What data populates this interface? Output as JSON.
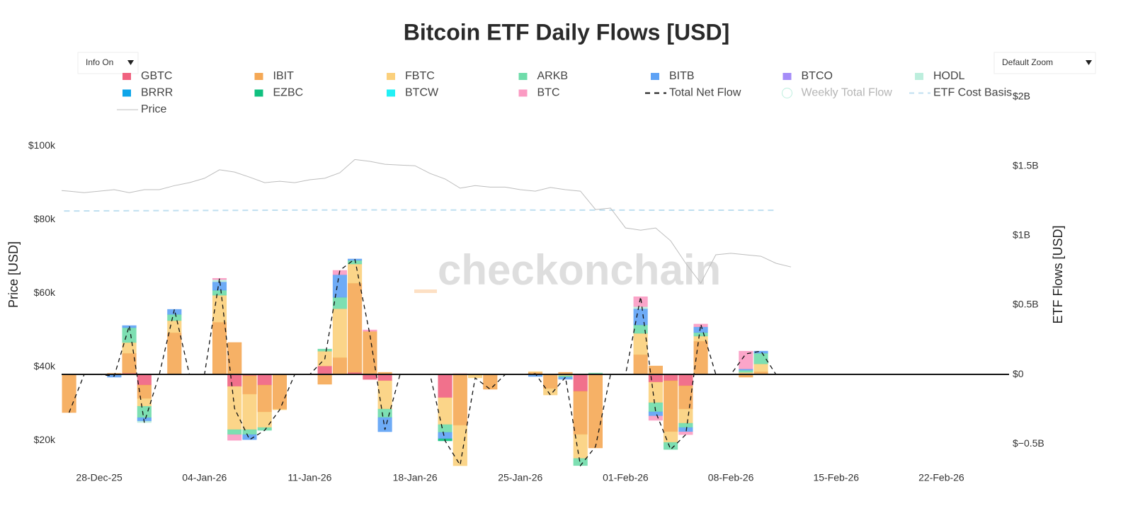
{
  "chart_data": {
    "type": "bar",
    "title": "Bitcoin ETF Daily Flows [USD]",
    "watermark": "checkonchain",
    "controls": [
      "Info On",
      "Default Zoom"
    ],
    "y_label": "Price [USD]",
    "y2_label": "ETF Flows [USD]",
    "legend": "top",
    "xlim": [
      "2025-12-25T12:00:00Z",
      "2026-02-26T12:00:00Z"
    ],
    "xticks": [
      {
        "value": "2025-12-28",
        "label": "28-Dec-25"
      },
      {
        "value": "2026-01-04",
        "label": "04-Jan-26"
      },
      {
        "value": "2026-01-11",
        "label": "11-Jan-26"
      },
      {
        "value": "2026-01-18",
        "label": "18-Jan-26"
      },
      {
        "value": "2026-01-25",
        "label": "25-Jan-26"
      },
      {
        "value": "2026-02-01",
        "label": "01-Feb-26"
      },
      {
        "value": "2026-02-08",
        "label": "08-Feb-26"
      },
      {
        "value": "2026-02-15",
        "label": "15-Feb-26"
      },
      {
        "value": "2026-02-22",
        "label": "22-Feb-26"
      }
    ],
    "ylim": [
      12700,
      113300
    ],
    "yticks": [
      {
        "value": 20000,
        "label": "$20k"
      },
      {
        "value": 40000,
        "label": "$40k"
      },
      {
        "value": 60000,
        "label": "$60k"
      },
      {
        "value": 80000,
        "label": "$80k"
      },
      {
        "value": 100000,
        "label": "$100k"
      }
    ],
    "y2lim": [
      -668000000,
      2000000000
    ],
    "y2ticks": [
      {
        "value": -500000000,
        "label": "$−0.5B"
      },
      {
        "value": 0,
        "label": "$0"
      },
      {
        "value": 500000000,
        "label": "$0.5B"
      },
      {
        "value": 1000000000,
        "label": "$1B"
      },
      {
        "value": 1500000000,
        "label": "$1.5B"
      },
      {
        "value": 2000000000,
        "label": "$2B"
      }
    ],
    "x": [
      "2025-12-26",
      "2025-12-29",
      "2025-12-30",
      "2025-12-31",
      "2026-01-02",
      "2026-01-05",
      "2026-01-06",
      "2026-01-07",
      "2026-01-08",
      "2026-01-09",
      "2026-01-12",
      "2026-01-13",
      "2026-01-14",
      "2026-01-15",
      "2026-01-16",
      "2026-01-20",
      "2026-01-21",
      "2026-01-22",
      "2026-01-23",
      "2026-01-26",
      "2026-01-27",
      "2026-01-28",
      "2026-01-29",
      "2026-01-30",
      "2026-02-02",
      "2026-02-03",
      "2026-02-04",
      "2026-02-05",
      "2026-02-06",
      "2026-02-09",
      "2026-02-10"
    ],
    "series": [
      {
        "name": "GBTC",
        "type": "bar",
        "axis": "y2",
        "color": "#f0627f",
        "values": [
          0,
          0,
          10000000,
          -77000000,
          0,
          5000000,
          -87000000,
          -10000000,
          -77000000,
          0,
          61000000,
          0,
          15000000,
          -36000000,
          -46000000,
          -168000000,
          5000000,
          0,
          0,
          5000000,
          0,
          0,
          -122000000,
          0,
          0,
          -56000000,
          -46000000,
          -82000000,
          0,
          0,
          0
        ]
      },
      {
        "name": "IBIT",
        "type": "bar",
        "axis": "y2",
        "color": "#f5a855",
        "values": [
          -275000000,
          8000000,
          143000000,
          -97000000,
          301000000,
          372000000,
          230000000,
          -133000000,
          -194000000,
          -250000000,
          -71000000,
          122000000,
          643000000,
          311000000,
          15000000,
          0,
          -367000000,
          -5000000,
          -107000000,
          10000000,
          -102000000,
          15000000,
          -311000000,
          -530000000,
          143000000,
          61000000,
          -367000000,
          -168000000,
          240000000,
          -20000000,
          20000000
        ]
      },
      {
        "name": "FBTC",
        "type": "bar",
        "axis": "y2",
        "color": "#fbd07c",
        "values": [
          0,
          0,
          77000000,
          -56000000,
          87000000,
          194000000,
          -311000000,
          -255000000,
          -112000000,
          -5000000,
          107000000,
          352000000,
          138000000,
          0,
          -204000000,
          -194000000,
          -291000000,
          -20000000,
          0,
          5000000,
          -46000000,
          -10000000,
          -173000000,
          0,
          153000000,
          -148000000,
          -77000000,
          -102000000,
          36000000,
          15000000,
          56000000
        ]
      },
      {
        "name": "ARKB",
        "type": "bar",
        "axis": "y2",
        "color": "#6fdcaa",
        "values": [
          0,
          0,
          107000000,
          -82000000,
          45000000,
          36000000,
          -36000000,
          -36000000,
          -20000000,
          0,
          15000000,
          82000000,
          26000000,
          0,
          -61000000,
          -56000000,
          0,
          0,
          0,
          0,
          0,
          -10000000,
          -51000000,
          10000000,
          61000000,
          -66000000,
          -51000000,
          -31000000,
          26000000,
          15000000,
          77000000
        ]
      },
      {
        "name": "BITB",
        "type": "bar",
        "axis": "y2",
        "color": "#5ea2f5",
        "values": [
          0,
          -20000000,
          15000000,
          -25000000,
          36000000,
          61000000,
          0,
          -36000000,
          0,
          0,
          0,
          163000000,
          10000000,
          0,
          -102000000,
          -46000000,
          0,
          0,
          0,
          -15000000,
          0,
          -15000000,
          0,
          0,
          117000000,
          -30000000,
          0,
          -31000000,
          41000000,
          10000000,
          15000000
        ]
      },
      {
        "name": "BTCO",
        "type": "bar",
        "axis": "y2",
        "color": "#a58cf8",
        "values": [
          0,
          0,
          0,
          0,
          0,
          0,
          0,
          0,
          0,
          0,
          0,
          0,
          0,
          0,
          0,
          0,
          0,
          0,
          0,
          0,
          0,
          0,
          0,
          0,
          0,
          0,
          0,
          0,
          0,
          0,
          0
        ]
      },
      {
        "name": "HODL",
        "type": "bar",
        "axis": "y2",
        "color": "#bdeedd",
        "values": [
          0,
          0,
          0,
          -10000000,
          0,
          15000000,
          0,
          0,
          0,
          0,
          0,
          0,
          0,
          0,
          0,
          0,
          0,
          0,
          0,
          0,
          0,
          0,
          0,
          0,
          15000000,
          0,
          0,
          0,
          0,
          0,
          0
        ]
      },
      {
        "name": "BRRR",
        "type": "bar",
        "axis": "y2",
        "color": "#0ea5e9",
        "values": [
          0,
          0,
          0,
          0,
          0,
          0,
          0,
          0,
          0,
          0,
          0,
          0,
          0,
          0,
          0,
          0,
          0,
          0,
          0,
          0,
          0,
          0,
          0,
          0,
          0,
          0,
          0,
          0,
          0,
          0,
          0
        ]
      },
      {
        "name": "EZBC",
        "type": "bar",
        "axis": "y2",
        "color": "#10c07f",
        "values": [
          0,
          0,
          0,
          0,
          0,
          0,
          0,
          0,
          0,
          0,
          0,
          0,
          0,
          0,
          0,
          -15000000,
          0,
          0,
          0,
          0,
          0,
          0,
          0,
          0,
          0,
          0,
          0,
          0,
          0,
          0,
          0
        ]
      },
      {
        "name": "BTCW",
        "type": "bar",
        "axis": "y2",
        "color": "#22f0f5",
        "values": [
          0,
          0,
          0,
          0,
          0,
          0,
          0,
          0,
          0,
          0,
          0,
          0,
          0,
          0,
          0,
          0,
          0,
          0,
          0,
          0,
          0,
          0,
          0,
          0,
          0,
          0,
          0,
          0,
          0,
          0,
          0
        ]
      },
      {
        "name": "BTC",
        "type": "bar",
        "axis": "y2",
        "color": "#fb9bc3",
        "values": [
          0,
          0,
          0,
          0,
          0,
          10000000,
          -41000000,
          0,
          0,
          0,
          0,
          31000000,
          0,
          10000000,
          0,
          0,
          0,
          0,
          0,
          0,
          0,
          0,
          0,
          0,
          71000000,
          -31000000,
          0,
          -20000000,
          20000000,
          128000000,
          0
        ]
      },
      {
        "name": "Total Net Flow",
        "type": "line",
        "axis": "y2",
        "color": "#111111",
        "dash": "dash",
        "x": [
          "2025-12-26",
          "2025-12-27",
          "2025-12-28",
          "2025-12-29",
          "2025-12-30",
          "2025-12-31",
          "2026-01-01",
          "2026-01-02",
          "2026-01-03",
          "2026-01-04",
          "2026-01-05",
          "2026-01-06",
          "2026-01-07",
          "2026-01-08",
          "2026-01-09",
          "2026-01-10",
          "2026-01-11",
          "2026-01-12",
          "2026-01-13",
          "2026-01-14",
          "2026-01-15",
          "2026-01-16",
          "2026-01-17",
          "2026-01-18",
          "2026-01-19",
          "2026-01-20",
          "2026-01-21",
          "2026-01-22",
          "2026-01-23",
          "2026-01-24",
          "2026-01-25",
          "2026-01-26",
          "2026-01-27",
          "2026-01-28",
          "2026-01-29",
          "2026-01-30",
          "2026-01-31",
          "2026-02-01",
          "2026-02-02",
          "2026-02-03",
          "2026-02-04",
          "2026-02-05",
          "2026-02-06",
          "2026-02-07",
          "2026-02-08",
          "2026-02-09",
          "2026-02-10",
          "2026-02-11"
        ],
        "values": [
          -275000000,
          0,
          0,
          -12000000,
          352000000,
          -347000000,
          0,
          469000000,
          0,
          0,
          693000000,
          -245000000,
          -470000000,
          -403000000,
          -255000000,
          0,
          0,
          112000000,
          750000000,
          832000000,
          285000000,
          -398000000,
          0,
          0,
          0,
          -479000000,
          -653000000,
          -25000000,
          -107000000,
          0,
          0,
          5000000,
          -148000000,
          -20000000,
          -657000000,
          -520000000,
          0,
          0,
          560000000,
          -270000000,
          -541000000,
          -434000000,
          363000000,
          0,
          0,
          148000000,
          168000000,
          0
        ]
      },
      {
        "name": "Weekly Total Flow",
        "type": "scatter",
        "axis": "y2",
        "color": "#7ee0c0",
        "hidden": true
      },
      {
        "name": "ETF Cost Basis",
        "type": "line",
        "axis": "y",
        "color": "#bfdff0",
        "dash": "dash",
        "x": [
          "2025-12-25",
          "2026-01-14",
          "2026-02-11"
        ],
        "values": [
          82300,
          82600,
          82500
        ]
      },
      {
        "name": "Price",
        "type": "line",
        "axis": "y",
        "color": "#bdbdbd",
        "x": [
          "2025-12-25",
          "2025-12-26",
          "2025-12-27",
          "2025-12-28",
          "2025-12-29",
          "2025-12-30",
          "2025-12-31",
          "2026-01-01",
          "2026-01-02",
          "2026-01-03",
          "2026-01-04",
          "2026-01-05",
          "2026-01-06",
          "2026-01-07",
          "2026-01-08",
          "2026-01-09",
          "2026-01-10",
          "2026-01-11",
          "2026-01-12",
          "2026-01-13",
          "2026-01-14",
          "2026-01-15",
          "2026-01-16",
          "2026-01-17",
          "2026-01-18",
          "2026-01-19",
          "2026-01-20",
          "2026-01-21",
          "2026-01-22",
          "2026-01-23",
          "2026-01-24",
          "2026-01-25",
          "2026-01-26",
          "2026-01-27",
          "2026-01-28",
          "2026-01-29",
          "2026-01-30",
          "2026-01-31",
          "2026-02-01",
          "2026-02-02",
          "2026-02-03",
          "2026-02-04",
          "2026-02-05",
          "2026-02-06",
          "2026-02-07",
          "2026-02-08",
          "2026-02-09",
          "2026-02-10",
          "2026-02-11",
          "2026-02-12"
        ],
        "values": [
          88000,
          87700,
          87300,
          87700,
          88100,
          87300,
          88100,
          88100,
          89200,
          90000,
          91200,
          93500,
          92900,
          91500,
          90000,
          90400,
          90000,
          90800,
          91200,
          92700,
          96300,
          95800,
          95000,
          94800,
          94600,
          92500,
          91000,
          88500,
          89200,
          88800,
          88800,
          88100,
          87700,
          88700,
          88100,
          87700,
          82700,
          83100,
          77700,
          77100,
          77700,
          74200,
          68100,
          62700,
          70400,
          70800,
          70400,
          70000,
          68100,
          67100
        ]
      }
    ]
  }
}
